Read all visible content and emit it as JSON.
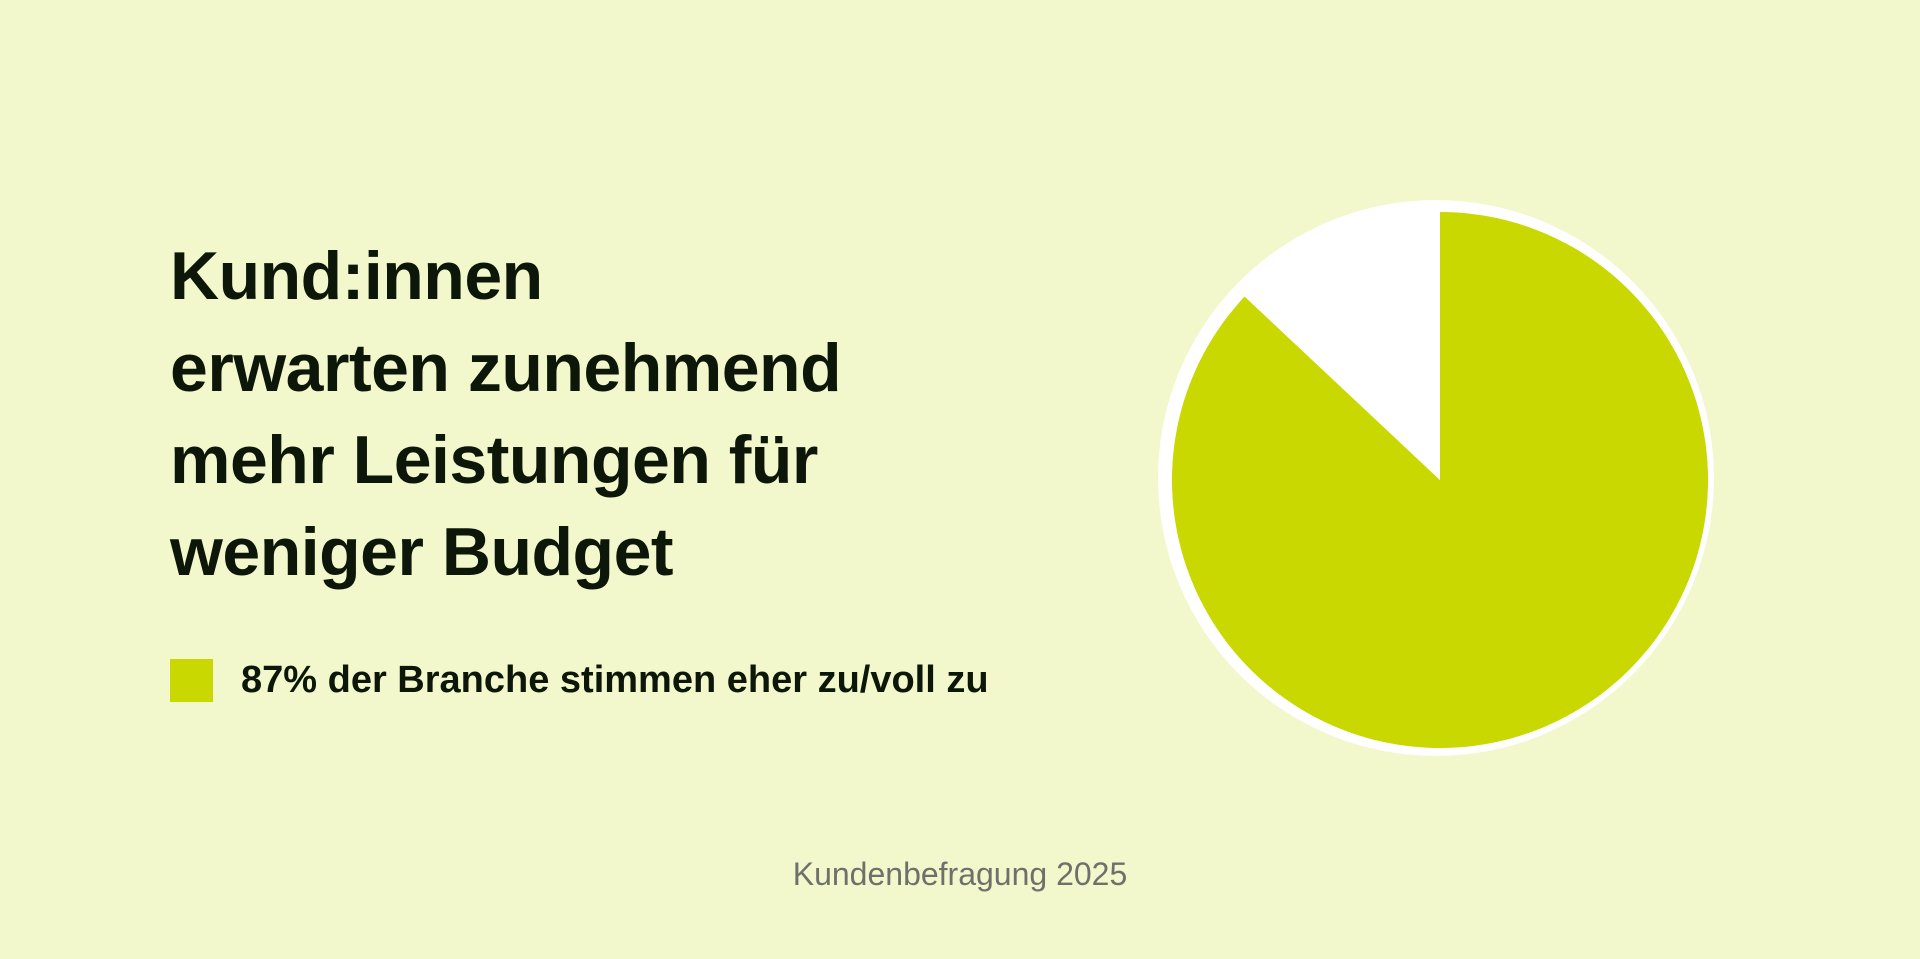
{
  "headline": {
    "lines": [
      "Kund:innen",
      "erwarten zunehmend",
      "mehr Leistungen für",
      "weniger Budget"
    ]
  },
  "legend": {
    "label": "87% der Branche stimmen eher zu/voll zu"
  },
  "source": "Kundenbefragung 2025",
  "colors": {
    "background": "#f3f7cc",
    "accent": "#c8d800",
    "remainder": "#ffffff",
    "text": "#0c1609",
    "muted": "#6e716a"
  },
  "chart_data": {
    "type": "pie",
    "slices": [
      {
        "label": "87% der Branche stimmen eher zu/voll zu",
        "value": 87,
        "color": "#c8d800"
      },
      {
        "label": "",
        "value": 13,
        "color": "#ffffff"
      }
    ],
    "title": "",
    "start_angle_degrees": 0,
    "direction": "clockwise",
    "legend_position": "left"
  }
}
